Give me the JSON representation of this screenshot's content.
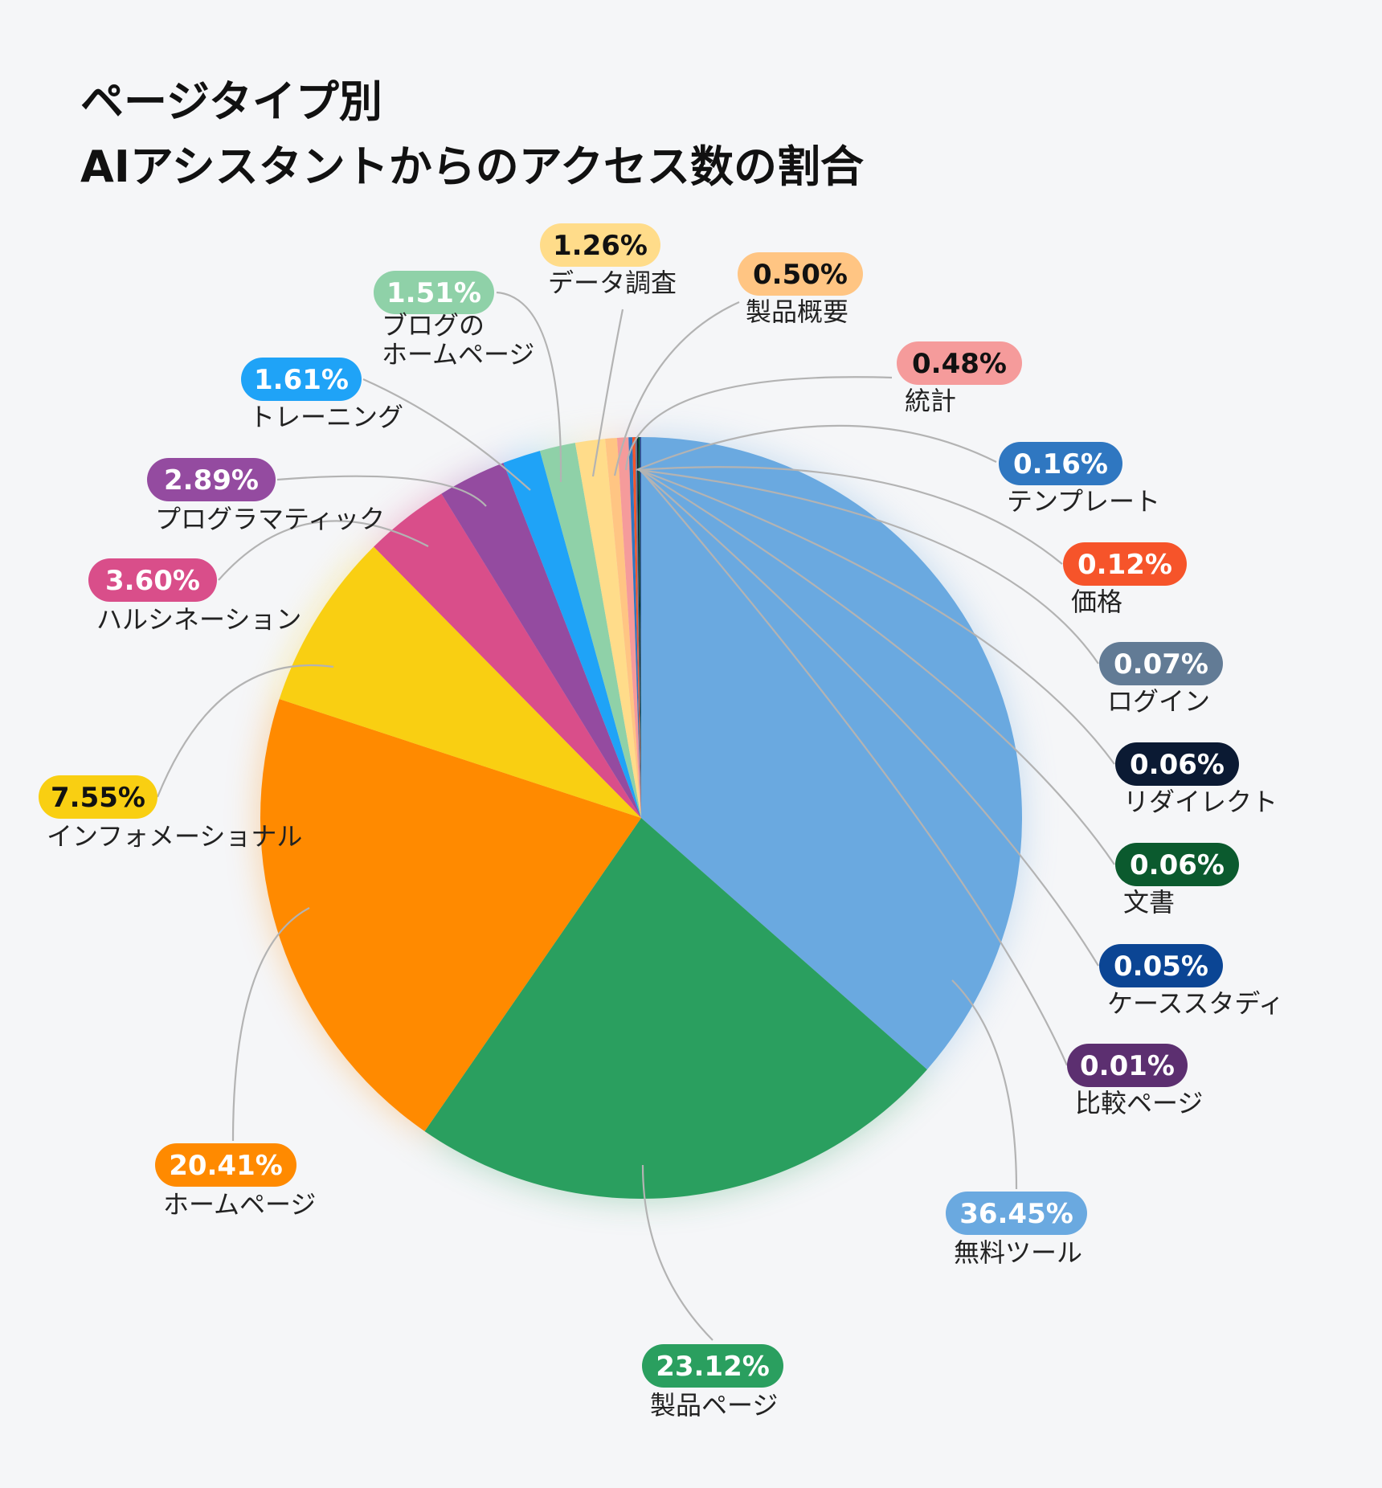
{
  "chart_data": {
    "type": "pie",
    "title": [
      "ページタイプ別",
      "AIアシスタントからのアクセス数の割合"
    ],
    "slices": [
      {
        "label": [
          "無料ツール"
        ],
        "value": 36.45,
        "value_label": "36.45%",
        "color": "#6aa9e0",
        "text_color": "#ffffff"
      },
      {
        "label": [
          "製品ページ"
        ],
        "value": 23.12,
        "value_label": "23.12%",
        "color": "#2a9f5f",
        "text_color": "#ffffff"
      },
      {
        "label": [
          "ホームページ"
        ],
        "value": 20.41,
        "value_label": "20.41%",
        "color": "#ff8a00",
        "text_color": "#ffffff"
      },
      {
        "label": [
          "インフォメーショナル"
        ],
        "value": 7.55,
        "value_label": "7.55%",
        "color": "#f9cf12",
        "text_color": "#111111"
      },
      {
        "label": [
          "ハルシネーション"
        ],
        "value": 3.6,
        "value_label": "3.60%",
        "color": "#d94e8a",
        "text_color": "#ffffff"
      },
      {
        "label": [
          "プログラマティック"
        ],
        "value": 2.89,
        "value_label": "2.89%",
        "color": "#944ba0",
        "text_color": "#ffffff"
      },
      {
        "label": [
          "トレーニング"
        ],
        "value": 1.61,
        "value_label": "1.61%",
        "color": "#1fa3f7",
        "text_color": "#ffffff"
      },
      {
        "label": [
          "ブログの",
          "ホームページ"
        ],
        "value": 1.51,
        "value_label": "1.51%",
        "color": "#8fd1a8",
        "text_color": "#ffffff"
      },
      {
        "label": [
          "データ調査"
        ],
        "value": 1.26,
        "value_label": "1.26%",
        "color": "#ffdc8a",
        "text_color": "#111111"
      },
      {
        "label": [
          "製品概要"
        ],
        "value": 0.5,
        "value_label": "0.50%",
        "color": "#ffc583",
        "text_color": "#111111"
      },
      {
        "label": [
          "統計"
        ],
        "value": 0.48,
        "value_label": "0.48%",
        "color": "#f59b9b",
        "text_color": "#111111"
      },
      {
        "label": [
          "テンプレート"
        ],
        "value": 0.16,
        "value_label": "0.16%",
        "color": "#2f77c1",
        "text_color": "#ffffff"
      },
      {
        "label": [
          "価格"
        ],
        "value": 0.12,
        "value_label": "0.12%",
        "color": "#f6542a",
        "text_color": "#ffffff"
      },
      {
        "label": [
          "ログイン"
        ],
        "value": 0.07,
        "value_label": "0.07%",
        "color": "#627b95",
        "text_color": "#ffffff"
      },
      {
        "label": [
          "リダイレクト"
        ],
        "value": 0.06,
        "value_label": "0.06%",
        "color": "#0b1a33",
        "text_color": "#ffffff"
      },
      {
        "label": [
          "文書"
        ],
        "value": 0.06,
        "value_label": "0.06%",
        "color": "#0b5a2e",
        "text_color": "#ffffff"
      },
      {
        "label": [
          "ケーススタディ"
        ],
        "value": 0.05,
        "value_label": "0.05%",
        "color": "#0b4594",
        "text_color": "#ffffff"
      },
      {
        "label": [
          "比較ページ"
        ],
        "value": 0.01,
        "value_label": "0.01%",
        "color": "#5c2f70",
        "text_color": "#ffffff"
      }
    ]
  }
}
